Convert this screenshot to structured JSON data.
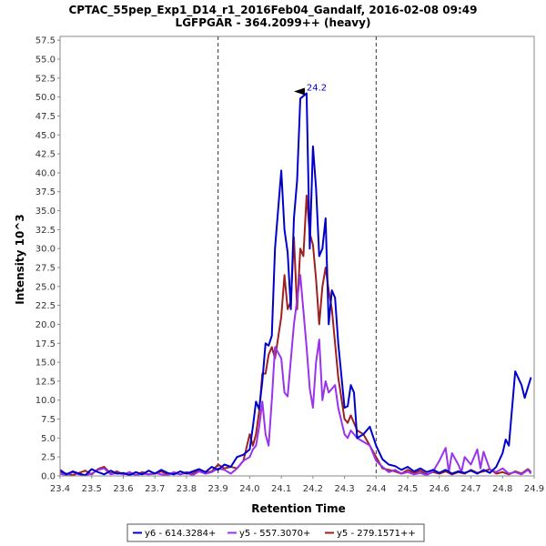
{
  "chart_data": {
    "type": "line",
    "title": "CPTAC_55pep_Exp1_D14_r1_2016Feb04_Gandalf, 2016-02-08 09:49",
    "subtitle": "LGFPGAR - 364.2099++ (heavy)",
    "xlabel": "Retention Time",
    "ylabel": "Intensity 10^3",
    "xlim": [
      23.4,
      24.9
    ],
    "ylim": [
      0,
      58
    ],
    "x_ticks": [
      "23.4",
      "23.5",
      "23.6",
      "23.7",
      "23.8",
      "23.9",
      "24.0",
      "24.1",
      "24.2",
      "24.3",
      "24.4",
      "24.5",
      "24.6",
      "24.7",
      "24.8",
      "24.9"
    ],
    "y_ticks": [
      "0.0",
      "2.5",
      "5.0",
      "7.5",
      "10.0",
      "12.5",
      "15.0",
      "17.5",
      "20.0",
      "22.5",
      "25.0",
      "27.5",
      "30.0",
      "32.5",
      "35.0",
      "37.5",
      "40.0",
      "42.5",
      "45.0",
      "47.5",
      "50.0",
      "52.5",
      "55.0",
      "57.5"
    ],
    "vlines": [
      23.9,
      24.4
    ],
    "peak_label": "24.2",
    "peak_label_pos": [
      24.18,
      50.5
    ],
    "legend_position": "bottom",
    "series": [
      {
        "name": "y6 - 614.3284+",
        "color": "#0000cc",
        "points": [
          [
            23.4,
            0.8
          ],
          [
            23.42,
            0.2
          ],
          [
            23.44,
            0.6
          ],
          [
            23.46,
            0.3
          ],
          [
            23.48,
            0.1
          ],
          [
            23.5,
            0.9
          ],
          [
            23.52,
            0.5
          ],
          [
            23.54,
            0.2
          ],
          [
            23.56,
            0.7
          ],
          [
            23.58,
            0.3
          ],
          [
            23.6,
            0.4
          ],
          [
            23.62,
            0.1
          ],
          [
            23.64,
            0.5
          ],
          [
            23.66,
            0.2
          ],
          [
            23.68,
            0.7
          ],
          [
            23.7,
            0.3
          ],
          [
            23.72,
            0.8
          ],
          [
            23.74,
            0.4
          ],
          [
            23.76,
            0.2
          ],
          [
            23.78,
            0.6
          ],
          [
            23.8,
            0.3
          ],
          [
            23.82,
            0.6
          ],
          [
            23.84,
            0.9
          ],
          [
            23.86,
            0.5
          ],
          [
            23.88,
            1.2
          ],
          [
            23.9,
            0.8
          ],
          [
            23.92,
            1.5
          ],
          [
            23.94,
            1.2
          ],
          [
            23.96,
            2.5
          ],
          [
            23.98,
            2.8
          ],
          [
            24.0,
            3.5
          ],
          [
            24.01,
            6.5
          ],
          [
            24.02,
            9.8
          ],
          [
            24.03,
            8.8
          ],
          [
            24.04,
            12.5
          ],
          [
            24.05,
            17.5
          ],
          [
            24.06,
            17.2
          ],
          [
            24.07,
            18.5
          ],
          [
            24.08,
            30.0
          ],
          [
            24.1,
            40.3
          ],
          [
            24.11,
            32.5
          ],
          [
            24.12,
            29.5
          ],
          [
            24.13,
            22.0
          ],
          [
            24.14,
            34.0
          ],
          [
            24.15,
            39.0
          ],
          [
            24.16,
            49.8
          ],
          [
            24.18,
            50.5
          ],
          [
            24.19,
            30.0
          ],
          [
            24.2,
            43.5
          ],
          [
            24.21,
            38.0
          ],
          [
            24.22,
            29.0
          ],
          [
            24.23,
            30.0
          ],
          [
            24.24,
            34.0
          ],
          [
            24.25,
            20.0
          ],
          [
            24.26,
            24.5
          ],
          [
            24.27,
            23.5
          ],
          [
            24.28,
            17.5
          ],
          [
            24.3,
            9.0
          ],
          [
            24.31,
            9.2
          ],
          [
            24.32,
            12.0
          ],
          [
            24.33,
            11.0
          ],
          [
            24.34,
            5.0
          ],
          [
            24.36,
            5.5
          ],
          [
            24.38,
            6.5
          ],
          [
            24.4,
            4.0
          ],
          [
            24.42,
            2.2
          ],
          [
            24.44,
            1.5
          ],
          [
            24.46,
            1.3
          ],
          [
            24.48,
            0.8
          ],
          [
            24.5,
            1.2
          ],
          [
            24.52,
            0.6
          ],
          [
            24.54,
            1.0
          ],
          [
            24.56,
            0.5
          ],
          [
            24.58,
            0.8
          ],
          [
            24.6,
            0.4
          ],
          [
            24.62,
            0.8
          ],
          [
            24.64,
            0.3
          ],
          [
            24.66,
            0.6
          ],
          [
            24.68,
            0.4
          ],
          [
            24.7,
            0.7
          ],
          [
            24.72,
            0.3
          ],
          [
            24.74,
            0.8
          ],
          [
            24.76,
            0.4
          ],
          [
            24.78,
            1.2
          ],
          [
            24.8,
            3.0
          ],
          [
            24.81,
            4.8
          ],
          [
            24.82,
            4.0
          ],
          [
            24.84,
            13.8
          ],
          [
            24.86,
            12.0
          ],
          [
            24.87,
            10.3
          ],
          [
            24.89,
            13.0
          ]
        ]
      },
      {
        "name": "y5 - 557.3070+",
        "color": "#9933ee",
        "points": [
          [
            23.4,
            0.3
          ],
          [
            23.42,
            0.1
          ],
          [
            23.44,
            0.5
          ],
          [
            23.46,
            0.2
          ],
          [
            23.48,
            0.1
          ],
          [
            23.5,
            0.3
          ],
          [
            23.52,
            0.8
          ],
          [
            23.54,
            1.0
          ],
          [
            23.56,
            0.2
          ],
          [
            23.58,
            0.4
          ],
          [
            23.6,
            0.2
          ],
          [
            23.62,
            0.5
          ],
          [
            23.64,
            0.1
          ],
          [
            23.66,
            0.3
          ],
          [
            23.68,
            0.2
          ],
          [
            23.7,
            0.4
          ],
          [
            23.72,
            0.2
          ],
          [
            23.74,
            0.1
          ],
          [
            23.76,
            0.5
          ],
          [
            23.78,
            0.2
          ],
          [
            23.8,
            0.4
          ],
          [
            23.82,
            0.1
          ],
          [
            23.84,
            0.6
          ],
          [
            23.86,
            0.3
          ],
          [
            23.88,
            0.5
          ],
          [
            23.9,
            1.0
          ],
          [
            23.92,
            0.8
          ],
          [
            23.94,
            0.3
          ],
          [
            23.96,
            1.0
          ],
          [
            23.98,
            2.0
          ],
          [
            24.0,
            2.5
          ],
          [
            24.01,
            3.5
          ],
          [
            24.02,
            4.0
          ],
          [
            24.03,
            6.5
          ],
          [
            24.04,
            9.8
          ],
          [
            24.05,
            5.5
          ],
          [
            24.06,
            4.0
          ],
          [
            24.07,
            10.0
          ],
          [
            24.08,
            17.0
          ],
          [
            24.1,
            15.5
          ],
          [
            24.11,
            11.0
          ],
          [
            24.12,
            10.5
          ],
          [
            24.14,
            20.0
          ],
          [
            24.16,
            26.5
          ],
          [
            24.18,
            17.0
          ],
          [
            24.19,
            11.5
          ],
          [
            24.2,
            9.0
          ],
          [
            24.21,
            15.0
          ],
          [
            24.22,
            18.0
          ],
          [
            24.23,
            10.0
          ],
          [
            24.24,
            12.5
          ],
          [
            24.25,
            11.0
          ],
          [
            24.27,
            12.0
          ],
          [
            24.28,
            9.0
          ],
          [
            24.3,
            5.5
          ],
          [
            24.31,
            5.0
          ],
          [
            24.32,
            6.0
          ],
          [
            24.34,
            5.0
          ],
          [
            24.36,
            4.5
          ],
          [
            24.38,
            4.0
          ],
          [
            24.4,
            2.0
          ],
          [
            24.42,
            1.2
          ],
          [
            24.44,
            0.5
          ],
          [
            24.46,
            0.8
          ],
          [
            24.48,
            0.3
          ],
          [
            24.5,
            0.5
          ],
          [
            24.52,
            0.2
          ],
          [
            24.54,
            0.4
          ],
          [
            24.56,
            0.1
          ],
          [
            24.58,
            0.6
          ],
          [
            24.6,
            2.0
          ],
          [
            24.62,
            3.7
          ],
          [
            24.63,
            0.5
          ],
          [
            24.64,
            3.0
          ],
          [
            24.66,
            1.5
          ],
          [
            24.67,
            0.5
          ],
          [
            24.68,
            2.5
          ],
          [
            24.7,
            1.5
          ],
          [
            24.72,
            3.5
          ],
          [
            24.73,
            1.0
          ],
          [
            24.74,
            3.2
          ],
          [
            24.76,
            0.8
          ],
          [
            24.78,
            0.5
          ],
          [
            24.8,
            1.0
          ],
          [
            24.82,
            0.3
          ],
          [
            24.84,
            0.5
          ],
          [
            24.86,
            0.2
          ],
          [
            24.88,
            0.8
          ],
          [
            24.89,
            0.3
          ]
        ]
      },
      {
        "name": "y5 - 279.1571++",
        "color": "#9e2020",
        "points": [
          [
            23.4,
            0.5
          ],
          [
            23.42,
            0.3
          ],
          [
            23.44,
            0.1
          ],
          [
            23.46,
            0.4
          ],
          [
            23.48,
            0.7
          ],
          [
            23.5,
            0.2
          ],
          [
            23.52,
            0.9
          ],
          [
            23.54,
            1.2
          ],
          [
            23.56,
            0.3
          ],
          [
            23.58,
            0.6
          ],
          [
            23.6,
            0.2
          ],
          [
            23.62,
            0.4
          ],
          [
            23.64,
            0.1
          ],
          [
            23.66,
            0.5
          ],
          [
            23.68,
            0.2
          ],
          [
            23.7,
            0.3
          ],
          [
            23.72,
            0.6
          ],
          [
            23.74,
            0.2
          ],
          [
            23.76,
            0.4
          ],
          [
            23.78,
            0.2
          ],
          [
            23.8,
            0.5
          ],
          [
            23.82,
            0.3
          ],
          [
            23.84,
            0.8
          ],
          [
            23.86,
            0.4
          ],
          [
            23.88,
            0.6
          ],
          [
            23.9,
            1.5
          ],
          [
            23.92,
            1.0
          ],
          [
            23.94,
            1.2
          ],
          [
            23.96,
            1.0
          ],
          [
            23.98,
            2.0
          ],
          [
            24.0,
            5.5
          ],
          [
            24.01,
            4.0
          ],
          [
            24.02,
            5.5
          ],
          [
            24.03,
            8.5
          ],
          [
            24.04,
            13.5
          ],
          [
            24.05,
            13.5
          ],
          [
            24.06,
            16.0
          ],
          [
            24.07,
            17.0
          ],
          [
            24.08,
            15.5
          ],
          [
            24.1,
            21.0
          ],
          [
            24.11,
            26.5
          ],
          [
            24.12,
            22.0
          ],
          [
            24.13,
            23.0
          ],
          [
            24.14,
            31.5
          ],
          [
            24.15,
            22.0
          ],
          [
            24.16,
            30.0
          ],
          [
            24.17,
            29.0
          ],
          [
            24.18,
            37.0
          ],
          [
            24.19,
            32.0
          ],
          [
            24.2,
            30.5
          ],
          [
            24.21,
            26.0
          ],
          [
            24.22,
            20.0
          ],
          [
            24.23,
            25.0
          ],
          [
            24.24,
            27.5
          ],
          [
            24.25,
            24.5
          ],
          [
            24.26,
            22.0
          ],
          [
            24.28,
            13.0
          ],
          [
            24.3,
            7.5
          ],
          [
            24.31,
            7.0
          ],
          [
            24.32,
            8.0
          ],
          [
            24.34,
            6.0
          ],
          [
            24.36,
            5.5
          ],
          [
            24.38,
            4.0
          ],
          [
            24.4,
            2.5
          ],
          [
            24.42,
            1.0
          ],
          [
            24.44,
            0.8
          ],
          [
            24.46,
            0.6
          ],
          [
            24.48,
            0.3
          ],
          [
            24.5,
            0.8
          ],
          [
            24.52,
            0.4
          ],
          [
            24.54,
            0.7
          ],
          [
            24.56,
            0.2
          ],
          [
            24.58,
            0.5
          ],
          [
            24.6,
            0.3
          ],
          [
            24.62,
            0.6
          ],
          [
            24.64,
            0.2
          ],
          [
            24.66,
            0.5
          ],
          [
            24.68,
            0.3
          ],
          [
            24.7,
            0.8
          ],
          [
            24.72,
            0.4
          ],
          [
            24.74,
            0.6
          ],
          [
            24.76,
            0.9
          ],
          [
            24.78,
            0.3
          ],
          [
            24.8,
            0.5
          ],
          [
            24.82,
            0.2
          ],
          [
            24.84,
            0.6
          ],
          [
            24.86,
            0.3
          ],
          [
            24.88,
            0.9
          ],
          [
            24.89,
            0.5
          ]
        ]
      }
    ]
  }
}
